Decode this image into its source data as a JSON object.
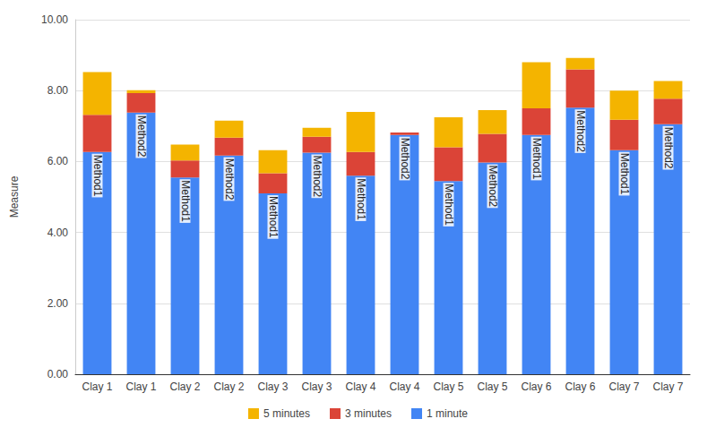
{
  "chart_data": {
    "type": "bar",
    "stacked": true,
    "grid": true,
    "legend": "bottom",
    "y_label": "Measure",
    "categories": [
      "Clay 1",
      "Clay 1",
      "Clay 2",
      "Clay 2",
      "Clay 3",
      "Clay 3",
      "Clay 4",
      "Clay 4",
      "Clay 5",
      "Clay 5",
      "Clay 6",
      "Clay 6",
      "Clay 7",
      "Clay 7"
    ],
    "annotations": [
      "Method1",
      "Method2",
      "Method1",
      "Method2",
      "Method1",
      "Method2",
      "Method1",
      "Method2",
      "Method1",
      "Method2",
      "Method1",
      "Method2",
      "Method1",
      "Method2"
    ],
    "series": [
      {
        "name": "1 minute",
        "color": "#4285f4",
        "values": [
          6.27,
          7.38,
          5.55,
          6.17,
          5.1,
          6.25,
          5.6,
          6.75,
          5.45,
          5.97,
          6.75,
          7.52,
          6.32,
          7.05
        ]
      },
      {
        "name": "3 minutes",
        "color": "#db4437",
        "values": [
          1.05,
          0.55,
          0.48,
          0.5,
          0.57,
          0.45,
          0.67,
          0.07,
          0.95,
          0.81,
          0.75,
          1.08,
          0.86,
          0.72
        ]
      },
      {
        "name": "5 minutes",
        "color": "#f4b400",
        "values": [
          1.2,
          0.08,
          0.45,
          0.48,
          0.65,
          0.25,
          1.13,
          0,
          0.85,
          0.67,
          1.3,
          0.32,
          0.82,
          0.5
        ]
      }
    ],
    "ylim": [
      0,
      10
    ],
    "yticks": [
      {
        "value": 0,
        "label": "0.00"
      },
      {
        "value": 2,
        "label": "2.00"
      },
      {
        "value": 4,
        "label": "4.00"
      },
      {
        "value": 6,
        "label": "6.00"
      },
      {
        "value": 8,
        "label": "8.00"
      },
      {
        "value": 10,
        "label": "10.00"
      }
    ]
  }
}
